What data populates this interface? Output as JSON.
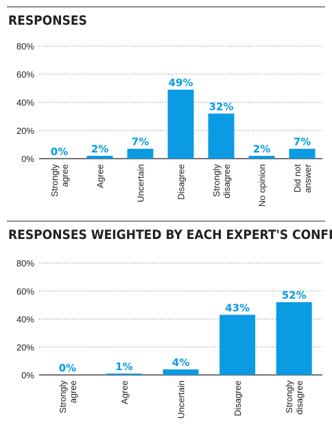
{
  "chart_data": [
    {
      "type": "bar",
      "title": "RESPONSES",
      "categories": [
        "Strongly\nagree",
        "Agree",
        "Uncertain",
        "Disagree",
        "Strongly\ndisagree",
        "No opinion",
        "Did not\nanswer"
      ],
      "values": [
        0,
        2,
        7,
        49,
        32,
        2,
        7
      ],
      "value_labels": [
        "0%",
        "2%",
        "7%",
        "49%",
        "32%",
        "2%",
        "7%"
      ],
      "color": "#0a9be3",
      "ylim": [
        0,
        80
      ],
      "yticks": [
        {
          "value": 0,
          "label": "0%"
        },
        {
          "value": 20,
          "label": "20%"
        },
        {
          "value": 40,
          "label": "40%"
        },
        {
          "value": 60,
          "label": "60%"
        },
        {
          "value": 80,
          "label": "80%"
        }
      ],
      "grid": true
    },
    {
      "type": "bar",
      "title": "RESPONSES WEIGHTED BY EACH EXPERT'S CONFIDENCE",
      "categories": [
        "Strongly\nagree",
        "Agree",
        "Uncertain",
        "Disagree",
        "Strongly\ndisagree"
      ],
      "values": [
        0,
        1,
        4,
        43,
        52
      ],
      "value_labels": [
        "0%",
        "1%",
        "4%",
        "43%",
        "52%"
      ],
      "color": "#0a9be3",
      "ylim": [
        0,
        80
      ],
      "yticks": [
        {
          "value": 0,
          "label": "0%"
        },
        {
          "value": 20,
          "label": "20%"
        },
        {
          "value": 40,
          "label": "40%"
        },
        {
          "value": 60,
          "label": "60%"
        },
        {
          "value": 80,
          "label": "80%"
        }
      ],
      "grid": true
    }
  ]
}
